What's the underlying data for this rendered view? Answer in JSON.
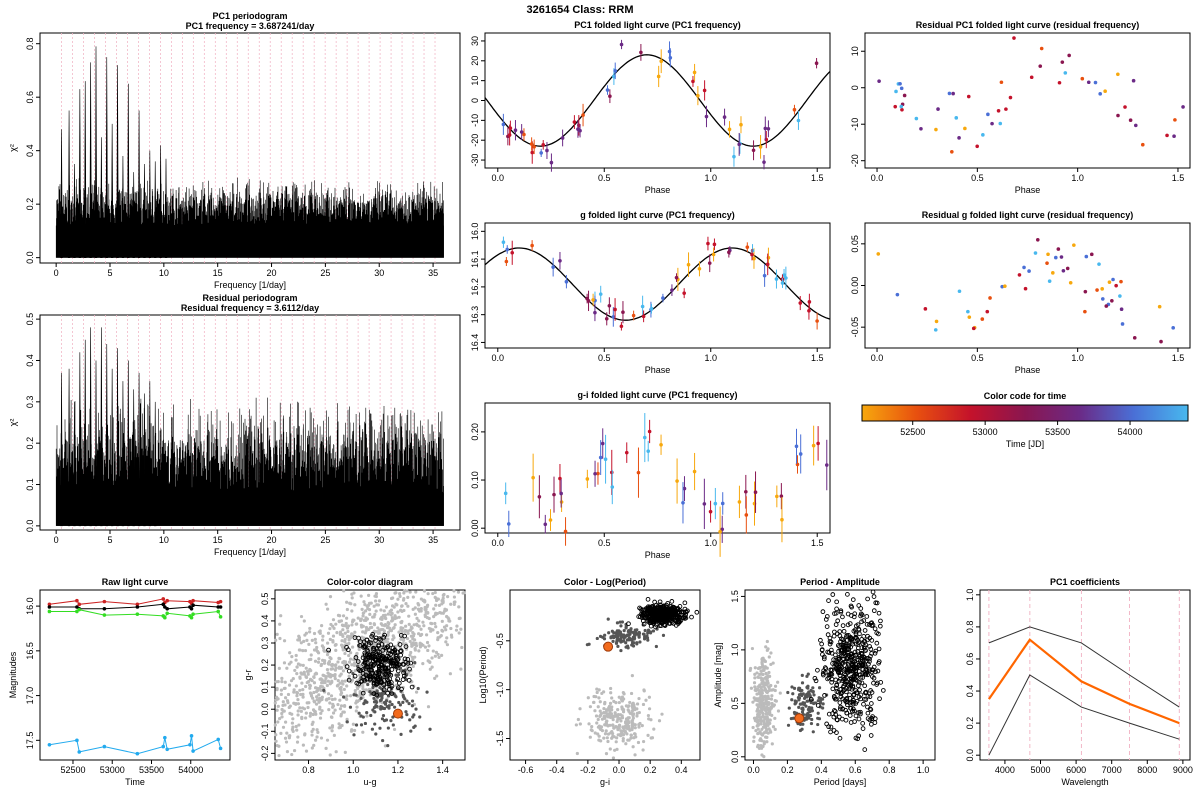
{
  "figure": {
    "title": "3261654    Class: RRM"
  },
  "chart_data": [
    {
      "id": "pc1-periodogram",
      "type": "line",
      "title": "PC1 periodogram",
      "subtitle": "PC1 frequency = 3.687241/day",
      "xlabel": "Frequency [1/day]",
      "ylabel": "χ²",
      "xlim": [
        -1.5,
        37.5
      ],
      "ylim": [
        -0.02,
        0.84
      ],
      "xticks": [
        0,
        5,
        10,
        15,
        20,
        25,
        30,
        35
      ],
      "yticks": [
        0.0,
        0.2,
        0.4,
        0.6,
        0.8
      ],
      "ytick_labels": [
        "0.0",
        "0.2",
        "0.4",
        "0.6",
        "0.8"
      ],
      "x_range": [
        0,
        36
      ],
      "peaks": [
        {
          "x": 0.5,
          "y": 0.48
        },
        {
          "x": 1.2,
          "y": 0.55
        },
        {
          "x": 1.7,
          "y": 0.35
        },
        {
          "x": 2.2,
          "y": 0.63
        },
        {
          "x": 2.7,
          "y": 0.66
        },
        {
          "x": 3.2,
          "y": 0.73
        },
        {
          "x": 3.7,
          "y": 0.79
        },
        {
          "x": 4.2,
          "y": 0.45
        },
        {
          "x": 4.7,
          "y": 0.75
        },
        {
          "x": 5.2,
          "y": 0.5
        },
        {
          "x": 5.7,
          "y": 0.72
        },
        {
          "x": 6.2,
          "y": 0.38
        },
        {
          "x": 6.7,
          "y": 0.65
        },
        {
          "x": 7.2,
          "y": 0.32
        },
        {
          "x": 7.7,
          "y": 0.55
        },
        {
          "x": 8.2,
          "y": 0.35
        },
        {
          "x": 8.7,
          "y": 0.4
        },
        {
          "x": 9.2,
          "y": 0.36
        },
        {
          "x": 9.7,
          "y": 0.42
        },
        {
          "x": 10.2,
          "y": 0.37
        }
      ],
      "floor_level": 0.12,
      "envelope_level": 0.3,
      "grid_lines": "dashed vertical guide lines"
    },
    {
      "id": "residual-periodogram",
      "type": "line",
      "title": "Residual periodogram",
      "subtitle": "Residual frequency = 3.6112/day",
      "xlabel": "Frequency [1/day]",
      "ylabel": "χ²",
      "xlim": [
        -1.5,
        37.5
      ],
      "ylim": [
        -0.01,
        0.51
      ],
      "xticks": [
        0,
        5,
        10,
        15,
        20,
        25,
        30,
        35
      ],
      "yticks": [
        0.0,
        0.1,
        0.2,
        0.3,
        0.4,
        0.5
      ],
      "ytick_labels": [
        "0.0",
        "0.1",
        "0.2",
        "0.3",
        "0.4",
        "0.5"
      ],
      "x_range": [
        0,
        36
      ],
      "peaks": [
        {
          "x": 0.5,
          "y": 0.37
        },
        {
          "x": 1.2,
          "y": 0.38
        },
        {
          "x": 1.7,
          "y": 0.3
        },
        {
          "x": 2.2,
          "y": 0.42
        },
        {
          "x": 2.7,
          "y": 0.45
        },
        {
          "x": 3.2,
          "y": 0.48
        },
        {
          "x": 3.7,
          "y": 0.4
        },
        {
          "x": 4.2,
          "y": 0.48
        },
        {
          "x": 4.7,
          "y": 0.44
        },
        {
          "x": 5.2,
          "y": 0.38
        },
        {
          "x": 5.7,
          "y": 0.43
        },
        {
          "x": 6.2,
          "y": 0.35
        },
        {
          "x": 6.7,
          "y": 0.4
        },
        {
          "x": 7.2,
          "y": 0.33
        },
        {
          "x": 7.7,
          "y": 0.37
        },
        {
          "x": 8.2,
          "y": 0.32
        },
        {
          "x": 8.7,
          "y": 0.35
        },
        {
          "x": 9.2,
          "y": 0.3
        }
      ],
      "floor_level": 0.08,
      "envelope_level": 0.32,
      "grid_lines": "dashed vertical guide lines"
    },
    {
      "id": "pc1-folded",
      "type": "scatter",
      "title": "PC1 folded light curve (PC1 frequency)",
      "xlabel": "Phase",
      "ylabel": "",
      "xlim": [
        -0.06,
        1.56
      ],
      "ylim": [
        -34,
        34
      ],
      "xticks": [
        0.0,
        0.5,
        1.0,
        1.5
      ],
      "xtick_labels": [
        "0.0",
        "0.5",
        "1.0",
        "1.5"
      ],
      "yticks": [
        -30,
        -20,
        -10,
        0,
        10,
        20,
        30
      ],
      "ytick_labels": [
        "-30",
        "-20",
        "-10",
        "0",
        "10",
        "20",
        "30"
      ],
      "model": {
        "mean": 0,
        "amplitude": 23,
        "phase_of_max": 0.7,
        "curve": "sine"
      },
      "scatter": 6,
      "error_bar": 4,
      "points": 50
    },
    {
      "id": "residual-pc1-folded",
      "type": "scatter",
      "title": "Residual PC1 folded light curve (residual frequency)",
      "xlabel": "Phase",
      "ylabel": "",
      "xlim": [
        -0.06,
        1.56
      ],
      "ylim": [
        -22,
        15
      ],
      "xticks": [
        0.0,
        0.5,
        1.0,
        1.5
      ],
      "xtick_labels": [
        "0.0",
        "0.5",
        "1.0",
        "1.5"
      ],
      "yticks": [
        -20,
        -10,
        0,
        10
      ],
      "ytick_labels": [
        "-20",
        "-10",
        "0",
        "10"
      ],
      "model": {
        "mean": -2,
        "amplitude": 8,
        "phase_of_max": 0.9,
        "curve": "sine"
      },
      "scatter": 5,
      "error_bar": 0,
      "points": 55
    },
    {
      "id": "g-folded",
      "type": "scatter",
      "title": "g folded light curve (PC1 frequency)",
      "xlabel": "Phase",
      "ylabel": "",
      "xlim": [
        -0.06,
        1.56
      ],
      "ylim": [
        16.42,
        15.97
      ],
      "xticks": [
        0.0,
        0.5,
        1.0,
        1.5
      ],
      "xtick_labels": [
        "0.0",
        "0.5",
        "1.0",
        "1.5"
      ],
      "yticks": [
        16.0,
        16.1,
        16.2,
        16.3,
        16.4
      ],
      "ytick_labels": [
        "16.0",
        "16.1",
        "16.2",
        "16.3",
        "16.4"
      ],
      "model": {
        "mean": 16.19,
        "amplitude": -0.13,
        "phase_of_max": 0.1,
        "curve": "sine"
      },
      "scatter": 0.025,
      "error_bar": 0.03,
      "points": 55
    },
    {
      "id": "residual-g-folded",
      "type": "scatter",
      "title": "Residual g folded light curve (residual frequency)",
      "xlabel": "Phase",
      "ylabel": "",
      "xlim": [
        -0.06,
        1.56
      ],
      "ylim": [
        -0.075,
        0.075
      ],
      "xticks": [
        0.0,
        0.5,
        1.0,
        1.5
      ],
      "xtick_labels": [
        "0.0",
        "0.5",
        "1.0",
        "1.5"
      ],
      "yticks": [
        -0.05,
        0.0,
        0.05
      ],
      "ytick_labels": [
        "-0.05",
        "0.00",
        "0.05"
      ],
      "model": {
        "mean": -0.005,
        "amplitude": 0.04,
        "phase_of_max": 0.9,
        "curve": "sine"
      },
      "scatter": 0.018,
      "error_bar": 0,
      "points": 55
    },
    {
      "id": "gi-folded",
      "type": "scatter",
      "title": "g-i folded light curve (PC1 frequency)",
      "xlabel": "Phase",
      "ylabel": "",
      "xlim": [
        -0.06,
        1.56
      ],
      "ylim": [
        -0.01,
        0.26
      ],
      "xticks": [
        0.0,
        0.5,
        1.0,
        1.5
      ],
      "xtick_labels": [
        "0.0",
        "0.5",
        "1.0",
        "1.5"
      ],
      "yticks": [
        0.0,
        0.1,
        0.2
      ],
      "ytick_labels": [
        "0.00",
        "0.10",
        "0.20"
      ],
      "model": {
        "mean": 0.09,
        "amplitude": 0.06,
        "phase_of_max": 0.6,
        "curve": "sine"
      },
      "scatter": 0.04,
      "error_bar": 0.035,
      "points": 50
    },
    {
      "id": "color-code",
      "type": "heatmap",
      "title": "Color code for time",
      "xlabel": "Time [JD]",
      "xlim": [
        52150,
        54400
      ],
      "xticks": [
        52500,
        53000,
        53500,
        54000
      ],
      "xtick_labels": [
        "52500",
        "53000",
        "53500",
        "54000"
      ],
      "colormap": [
        "#f7a80d",
        "#e8500f",
        "#c4122b",
        "#8a1650",
        "#6b2a86",
        "#4a6fd6",
        "#48b8ee"
      ]
    },
    {
      "id": "raw-light-curve",
      "type": "line",
      "title": "Raw light curve",
      "xlabel": "Time",
      "ylabel": "Magnitudes",
      "xlim": [
        52080,
        54500
      ],
      "ylim": [
        17.72,
        15.82
      ],
      "xticks": [
        52500,
        53000,
        53500,
        54000
      ],
      "xtick_labels": [
        "52500",
        "53000",
        "53500",
        "54000"
      ],
      "yticks": [
        16.0,
        16.5,
        17.0,
        17.5
      ],
      "ytick_labels": [
        "16.0",
        "16.5",
        "17.0",
        "17.5"
      ],
      "epochs": [
        52200,
        52550,
        52580,
        52900,
        53320,
        53650,
        53670,
        53700,
        53990,
        54010,
        54030,
        54350,
        54380
      ],
      "series": [
        {
          "color": "#cc2222",
          "offsets": [
            -0.02,
            -0.06,
            -0.02,
            -0.05,
            -0.02,
            -0.08,
            -0.04,
            -0.06,
            -0.05,
            -0.03,
            -0.06,
            -0.04,
            -0.05
          ],
          "base": 16.0
        },
        {
          "color": "#000000",
          "offsets": [
            0.0,
            0.0,
            0.02,
            0.02,
            0.0,
            -0.03,
            0.0,
            0.02,
            0.0,
            0.02,
            -0.02,
            0.0,
            0.0
          ],
          "base": 16.01
        },
        {
          "color": "#33dd22",
          "offsets": [
            0.05,
            0.05,
            0.03,
            0.09,
            0.08,
            0.1,
            0.12,
            0.07,
            0.1,
            0.12,
            0.08,
            0.05,
            0.11
          ],
          "base": 16.01
        },
        {
          "color": "#22aaee",
          "offsets": [
            0.0,
            -0.05,
            0.08,
            0.02,
            0.1,
            0.02,
            -0.08,
            0.05,
            0.0,
            -0.1,
            0.07,
            -0.06,
            0.04
          ],
          "base": 17.55
        }
      ]
    },
    {
      "id": "color-color",
      "type": "scatter",
      "title": "Color-color diagram",
      "xlabel": "u-g",
      "ylabel": "g-r",
      "xlim": [
        0.65,
        1.5
      ],
      "ylim": [
        -0.23,
        0.54
      ],
      "xticks": [
        0.8,
        1.0,
        1.2,
        1.4
      ],
      "xtick_labels": [
        "0.8",
        "1.0",
        "1.2",
        "1.4"
      ],
      "yticks": [
        -0.2,
        -0.1,
        0.0,
        0.1,
        0.2,
        0.3,
        0.4,
        0.5
      ],
      "ytick_labels": [
        "-0.2",
        "-0.1",
        "0.0",
        "0.1",
        "0.2",
        "0.3",
        "0.4",
        "0.5"
      ],
      "background": {
        "x_center": 1.05,
        "y_center": 0.25,
        "spread_x": 0.3,
        "spread_y": 0.15,
        "slope": 0.6,
        "n": 1400
      },
      "dark_cluster": {
        "x_center": 1.15,
        "y_center": 0.05,
        "spread_x": 0.08,
        "spread_y": 0.1,
        "n": 160
      },
      "target_cluster": {
        "x_center": 1.12,
        "y_center": 0.2,
        "spread_x": 0.06,
        "spread_y": 0.06,
        "n": 260
      },
      "target": {
        "x": 1.2,
        "y": -0.02
      }
    },
    {
      "id": "color-logperiod",
      "type": "scatter",
      "title": "Color - Log(Period)",
      "xlabel": "g-i",
      "ylabel": "Log10(Period)",
      "xlim": [
        -0.7,
        0.52
      ],
      "ylim": [
        -1.72,
        0.02
      ],
      "xticks": [
        -0.6,
        -0.4,
        -0.2,
        0.0,
        0.2,
        0.4
      ],
      "xtick_labels": [
        "-0.6",
        "-0.4",
        "-0.2",
        "0.0",
        "0.2",
        "0.4"
      ],
      "yticks": [
        -1.5,
        -1.0,
        -0.5
      ],
      "ytick_labels": [
        "-1.5",
        "-1.0",
        "-0.5"
      ],
      "background": {
        "x_center": 0.0,
        "y_center": -1.3,
        "spread_x": 0.1,
        "spread_y": 0.15,
        "n": 260
      },
      "dark_cluster": {
        "x_center": 0.05,
        "y_center": -0.45,
        "spread_x": 0.08,
        "spread_y": 0.06,
        "n": 120
      },
      "target_cluster": {
        "x_center": 0.28,
        "y_center": -0.23,
        "spread_x": 0.07,
        "spread_y": 0.05,
        "n": 420
      },
      "target": {
        "x": -0.07,
        "y": -0.56
      }
    },
    {
      "id": "period-amplitude",
      "type": "scatter",
      "title": "Period - Amplitude",
      "xlabel": "Period [days]",
      "ylabel": "Amplitude [mag]",
      "xlim": [
        -0.05,
        1.07
      ],
      "ylim": [
        -0.03,
        1.56
      ],
      "xticks": [
        0.0,
        0.2,
        0.4,
        0.6,
        0.8,
        1.0
      ],
      "xtick_labels": [
        "0.0",
        "0.2",
        "0.4",
        "0.6",
        "0.8",
        "1.0"
      ],
      "yticks": [
        0.0,
        0.5,
        1.0,
        1.5
      ],
      "ytick_labels": [
        "0.0",
        "0.5",
        "1.0",
        "1.5"
      ],
      "background": {
        "x_center": 0.06,
        "y_center": 0.5,
        "spread_x": 0.03,
        "spread_y": 0.2,
        "n": 300
      },
      "dark_cluster": {
        "x_center": 0.32,
        "y_center": 0.5,
        "spread_x": 0.05,
        "spread_y": 0.12,
        "n": 120
      },
      "target_cluster": {
        "x_center": 0.57,
        "y_center": 0.85,
        "spread_x": 0.08,
        "spread_y": 0.28,
        "n": 500
      },
      "target": {
        "x": 0.27,
        "y": 0.36
      }
    },
    {
      "id": "pc1-coefficients",
      "type": "line",
      "title": "PC1 coefficients",
      "xlabel": "Wavelength",
      "ylabel": "",
      "xlim": [
        3300,
        9200
      ],
      "ylim": [
        -0.03,
        1.03
      ],
      "xticks": [
        4000,
        5000,
        6000,
        7000,
        8000,
        9000
      ],
      "xtick_labels": [
        "4000",
        "5000",
        "6000",
        "7000",
        "8000",
        "9000"
      ],
      "yticks": [
        0.0,
        0.2,
        0.4,
        0.6,
        0.8,
        1.0
      ],
      "ytick_labels": [
        "0.0",
        "0.2",
        "0.4",
        "0.6",
        "0.8",
        "1.0"
      ],
      "x": [
        3550,
        4700,
        6150,
        7500,
        8900
      ],
      "series": [
        {
          "color": "#333333",
          "values": [
            0.7,
            0.8,
            0.7,
            0.5,
            0.3
          ]
        },
        {
          "color": "#ff6600",
          "values": [
            0.35,
            0.72,
            0.46,
            0.32,
            0.2
          ]
        },
        {
          "color": "#333333",
          "values": [
            0.0,
            0.5,
            0.3,
            0.2,
            0.1
          ]
        }
      ],
      "guide_lines": [
        3550,
        4700,
        6150,
        7500,
        8900
      ]
    }
  ]
}
